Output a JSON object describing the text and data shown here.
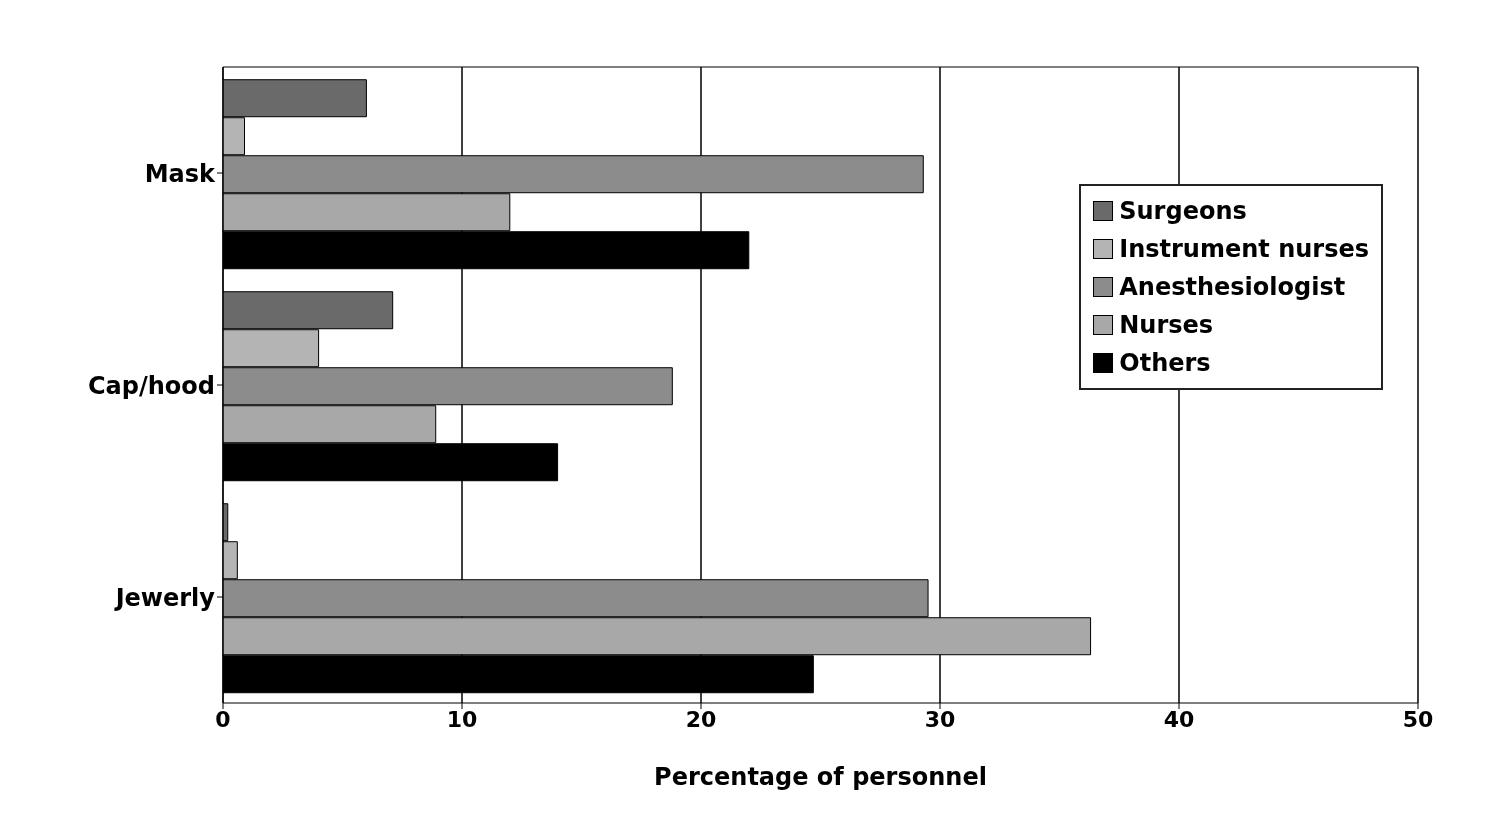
{
  "chart_data": {
    "type": "bar",
    "orientation": "horizontal",
    "xlabel": "Percentage of personnel",
    "categories": [
      "Mask",
      "Cap/hood",
      "Jewerly"
    ],
    "series": [
      {
        "name": "Surgeons",
        "color": "#6a6a6a",
        "values": [
          6.0,
          7.1,
          0.2
        ]
      },
      {
        "name": "Instrument nurses",
        "color": "#b4b4b4",
        "values": [
          0.9,
          4.0,
          0.6
        ]
      },
      {
        "name": "Anesthesiologist",
        "color": "#8c8c8c",
        "values": [
          29.3,
          18.8,
          29.5
        ]
      },
      {
        "name": "Nurses",
        "color": "#a8a8a8",
        "values": [
          12.0,
          8.9,
          36.3
        ]
      },
      {
        "name": "Others",
        "color": "#000000",
        "values": [
          22.0,
          14.0,
          24.7
        ]
      }
    ],
    "xlim": [
      0,
      50
    ],
    "xticks": [
      0,
      10,
      20,
      30,
      40,
      50
    ],
    "grid": "x",
    "legend": "top right"
  }
}
